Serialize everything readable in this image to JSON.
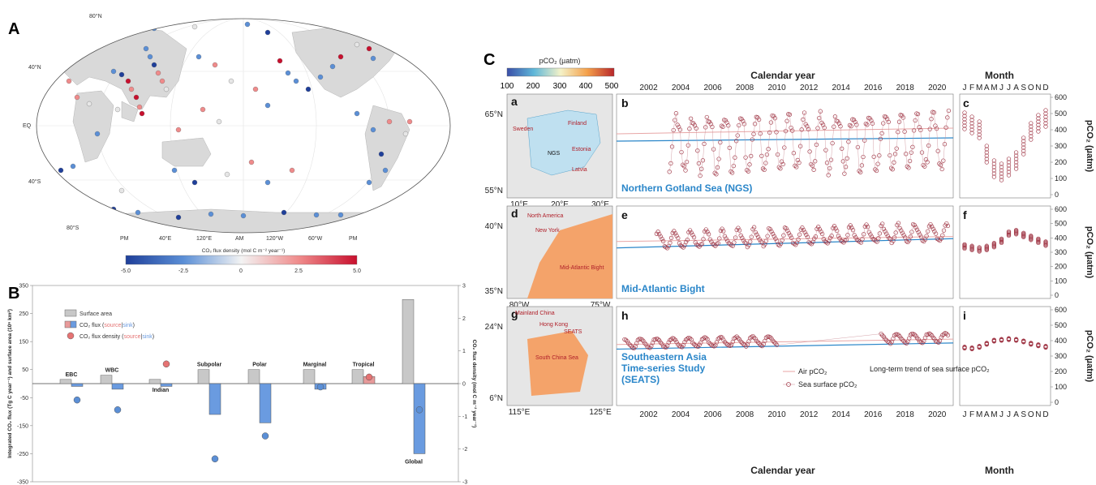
{
  "panels": {
    "A": "A",
    "B": "B",
    "C": "C"
  },
  "map": {
    "lat_labels": [
      "80°N",
      "40°N",
      "EQ",
      "40°S",
      "80°S"
    ],
    "lon_labels": [
      "PM",
      "40°E",
      "120°E",
      "AM",
      "120°W",
      "60°W",
      "PM"
    ],
    "colorbar_title": "CO₂ flux density (mol C m⁻² year⁻¹)",
    "colorbar_ticks": [
      "-5.0",
      "-2.5",
      "0",
      "2.5",
      "5.0"
    ],
    "colors": {
      "source": "#d62728",
      "sink": "#2a5db0",
      "neutral": "#f0f0f0",
      "land": "#d9d9d9"
    }
  },
  "legend_b": {
    "surface_area": "Surface area",
    "flux": "CO₂ flux (",
    "flux_source": "source",
    "flux_sep": "|",
    "flux_sink": "sink",
    "flux_end": ")",
    "density": "CO₂ flux density (",
    "density_source": "source",
    "density_sep": "|",
    "density_sink": "sink",
    "density_end": ")"
  },
  "chart_b": {
    "type": "bar",
    "categories": [
      "EBC",
      "WBC",
      "Indian",
      "Subpolar",
      "Polar",
      "Marginal",
      "Tropical",
      "Global"
    ],
    "ylabel": "Integrated CO₂ flux (Tg C year⁻¹) and surface area (10⁶ km²)",
    "ylabel_right": "CO₂ flux density (mol C m⁻² year⁻¹)",
    "ylim": [
      -350,
      350
    ],
    "yticks": [
      "350",
      "250",
      "150",
      "50",
      "-50",
      "-150",
      "-250",
      "-350"
    ],
    "ylim_right": [
      -3,
      3
    ],
    "yticks_right": [
      "3",
      "2",
      "1",
      "0",
      "-1",
      "-2",
      "-3"
    ],
    "series": [
      {
        "name": "Surface area",
        "values": [
          15,
          30,
          15,
          50,
          50,
          50,
          50,
          300
        ]
      },
      {
        "name": "CO₂ flux",
        "values": [
          -10,
          -20,
          -10,
          -110,
          -140,
          -20,
          25,
          -250
        ]
      },
      {
        "name": "CO₂ flux density",
        "values": [
          -0.5,
          -0.8,
          0.6,
          -2.3,
          -1.6,
          -0.1,
          0.2,
          -0.8
        ]
      }
    ]
  },
  "chart_c": {
    "colorbar_title": "pCO₂ (µatm)",
    "colorbar_ticks": [
      "100",
      "200",
      "300",
      "400",
      "500"
    ],
    "top_title": "Calendar year",
    "bottom_title": "Calendar year",
    "month_title": "Month",
    "year_ticks": [
      "2002",
      "2004",
      "2006",
      "2008",
      "2010",
      "2012",
      "2014",
      "2016",
      "2018",
      "2020"
    ],
    "month_ticks": [
      "J",
      "F",
      "M",
      "A",
      "M",
      "J",
      "J",
      "A",
      "S",
      "O",
      "N",
      "D"
    ],
    "y_ticks": [
      "600",
      "500",
      "400",
      "300",
      "200",
      "100",
      "0"
    ],
    "ylabel": "pCO₂ (µatm)",
    "ylim": [
      0,
      600
    ],
    "xlim": [
      2000,
      2021
    ],
    "legend_air": "Air pCO₂",
    "legend_sea": "Sea surface pCO₂",
    "legend_trend": "Long-term trend of sea surface pCO₂",
    "sites": [
      {
        "letters": [
          "a",
          "b",
          "c"
        ],
        "name": "Northern Gotland Sea (NGS)",
        "inset_lat": [
          "65°N",
          "55°N"
        ],
        "inset_lon": [
          "10°E",
          "20°E",
          "30°E"
        ],
        "inset_labels": [
          "Finland",
          "NGS",
          "Estonia",
          "Latvia",
          "Sweden"
        ],
        "year_start": 2003.3,
        "mean": 320,
        "amp": 160,
        "air_start": 375,
        "air_end": 410,
        "trend_start": 330,
        "trend_end": 350,
        "monthly": [
          455,
          430,
          400,
          250,
          160,
          140,
          170,
          210,
          300,
          390,
          440,
          470
        ]
      },
      {
        "letters": [
          "d",
          "e",
          "f"
        ],
        "name": "Mid-Atlantic Bight",
        "inset_lat": [
          "40°N",
          "35°N"
        ],
        "inset_lon": [
          "80°W",
          "75°W"
        ],
        "inset_labels": [
          "North America",
          "New York",
          "Mid-Atlantic Bight"
        ],
        "year_start": 2002.5,
        "mean": 360,
        "amp": 45,
        "air_start": 375,
        "air_end": 410,
        "trend_start": 330,
        "trend_end": 395,
        "monthly": [
          340,
          330,
          320,
          330,
          350,
          380,
          430,
          440,
          420,
          400,
          380,
          360
        ]
      },
      {
        "letters": [
          "g",
          "h",
          "i"
        ],
        "name": "Southeastern Asia Time-series Study (SEATS)",
        "inset_lat": [
          "24°N",
          "6°N"
        ],
        "inset_lon": [
          "115°E",
          "125°E"
        ],
        "inset_labels": [
          "Mainland China",
          "Hong Kong",
          "SEATS",
          "South China Sea"
        ],
        "year_start": 2000.5,
        "mean": 380,
        "amp": 15,
        "air_start": 375,
        "air_end": 410,
        "trend_start": 345,
        "trend_end": 385,
        "monthly": [
          355,
          350,
          360,
          380,
          400,
          405,
          410,
          405,
          395,
          380,
          370,
          360
        ]
      }
    ]
  }
}
